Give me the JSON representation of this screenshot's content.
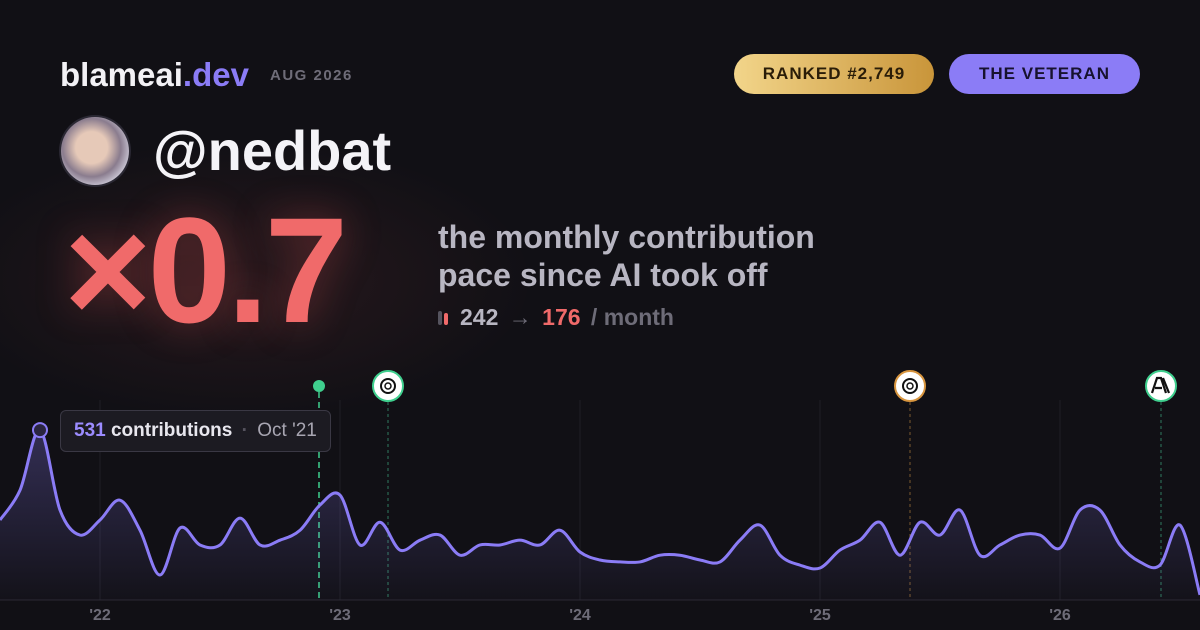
{
  "header": {
    "brand": "blameai",
    "brand_suffix": ".dev",
    "period": "AUG 2026",
    "rank": "RANKED #2,749",
    "persona": "THE VETERAN"
  },
  "profile": {
    "handle": "@nedbat"
  },
  "headline": {
    "multiplier": "×0.7",
    "line1": "the monthly contribution",
    "line2": "pace since AI took off",
    "before": "242",
    "arrow": "→",
    "after": "176",
    "unit": "/ month"
  },
  "tooltip": {
    "label": "contributions",
    "date": "Oct '21"
  },
  "chart_data": {
    "type": "line",
    "color": "#8b7cf6",
    "categories": [
      null,
      null,
      null,
      null,
      null,
      "'22",
      null,
      null,
      null,
      null,
      null,
      null,
      null,
      null,
      null,
      null,
      null,
      "'23",
      null,
      null,
      null,
      null,
      null,
      null,
      null,
      null,
      null,
      null,
      null,
      "'24",
      null,
      null,
      null,
      null,
      null,
      null,
      null,
      null,
      null,
      null,
      null,
      "'25",
      null,
      null,
      null,
      null,
      null,
      null,
      null,
      null,
      null,
      null,
      null,
      "'26",
      null,
      null,
      null,
      null,
      null,
      null,
      null
    ],
    "values": [
      250,
      343,
      531,
      281,
      203,
      250,
      312,
      218,
      78,
      225,
      172,
      172,
      256,
      172,
      187,
      218,
      297,
      328,
      172,
      243,
      156,
      187,
      203,
      140,
      172,
      172,
      187,
      172,
      218,
      150,
      125,
      119,
      119,
      140,
      140,
      125,
      119,
      187,
      234,
      140,
      109,
      100,
      156,
      187,
      243,
      140,
      243,
      203,
      281,
      140,
      172,
      203,
      203,
      162,
      281,
      281,
      172,
      119,
      109,
      234,
      16
    ],
    "ylim": [
      0,
      550
    ]
  }
}
